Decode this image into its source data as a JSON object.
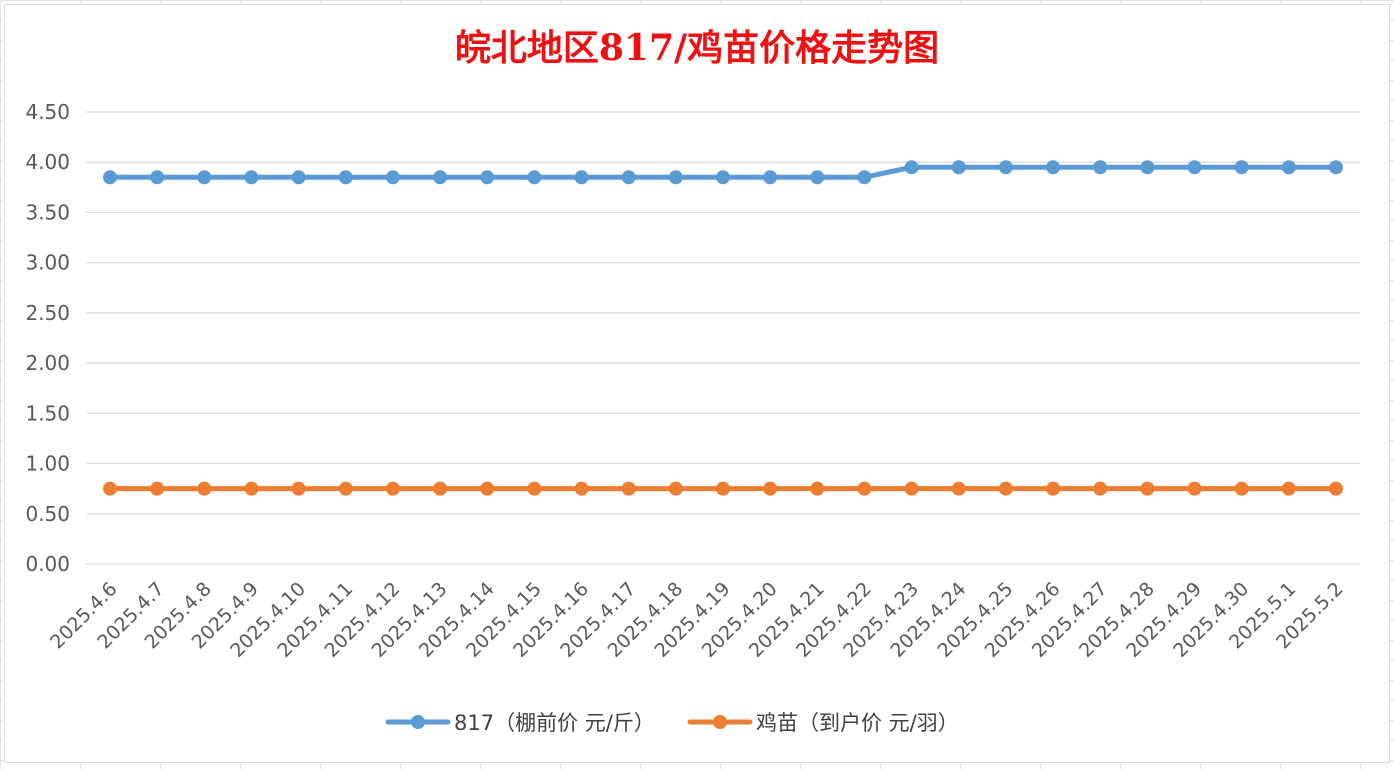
{
  "chart_data": {
    "type": "line",
    "title": "皖北地区817/鸡苗价格走势图",
    "categories": [
      "2025.4.6",
      "2025.4.7",
      "2025.4.8",
      "2025.4.9",
      "2025.4.10",
      "2025.4.11",
      "2025.4.12",
      "2025.4.13",
      "2025.4.14",
      "2025.4.15",
      "2025.4.16",
      "2025.4.17",
      "2025.4.18",
      "2025.4.19",
      "2025.4.20",
      "2025.4.21",
      "2025.4.22",
      "2025.4.23",
      "2025.4.24",
      "2025.4.25",
      "2025.4.26",
      "2025.4.27",
      "2025.4.28",
      "2025.4.29",
      "2025.4.30",
      "2025.5.1",
      "2025.5.2"
    ],
    "series": [
      {
        "name": "817（棚前价 元/斤）",
        "color": "#5b9bd5",
        "values": [
          3.85,
          3.85,
          3.85,
          3.85,
          3.85,
          3.85,
          3.85,
          3.85,
          3.85,
          3.85,
          3.85,
          3.85,
          3.85,
          3.85,
          3.85,
          3.85,
          3.85,
          3.95,
          3.95,
          3.95,
          3.95,
          3.95,
          3.95,
          3.95,
          3.95,
          3.95,
          3.95
        ]
      },
      {
        "name": "鸡苗（到户价 元/羽）",
        "color": "#ed7d31",
        "values": [
          0.75,
          0.75,
          0.75,
          0.75,
          0.75,
          0.75,
          0.75,
          0.75,
          0.75,
          0.75,
          0.75,
          0.75,
          0.75,
          0.75,
          0.75,
          0.75,
          0.75,
          0.75,
          0.75,
          0.75,
          0.75,
          0.75,
          0.75,
          0.75,
          0.75,
          0.75,
          0.75
        ]
      }
    ],
    "ylim": [
      0,
      4.5
    ],
    "yticks": [
      "0.00",
      "0.50",
      "1.00",
      "1.50",
      "2.00",
      "2.50",
      "3.00",
      "3.50",
      "4.00",
      "4.50"
    ],
    "xlabel": "",
    "ylabel": "",
    "grid": true,
    "legend_position": "bottom",
    "title_color": "#ee1111"
  }
}
